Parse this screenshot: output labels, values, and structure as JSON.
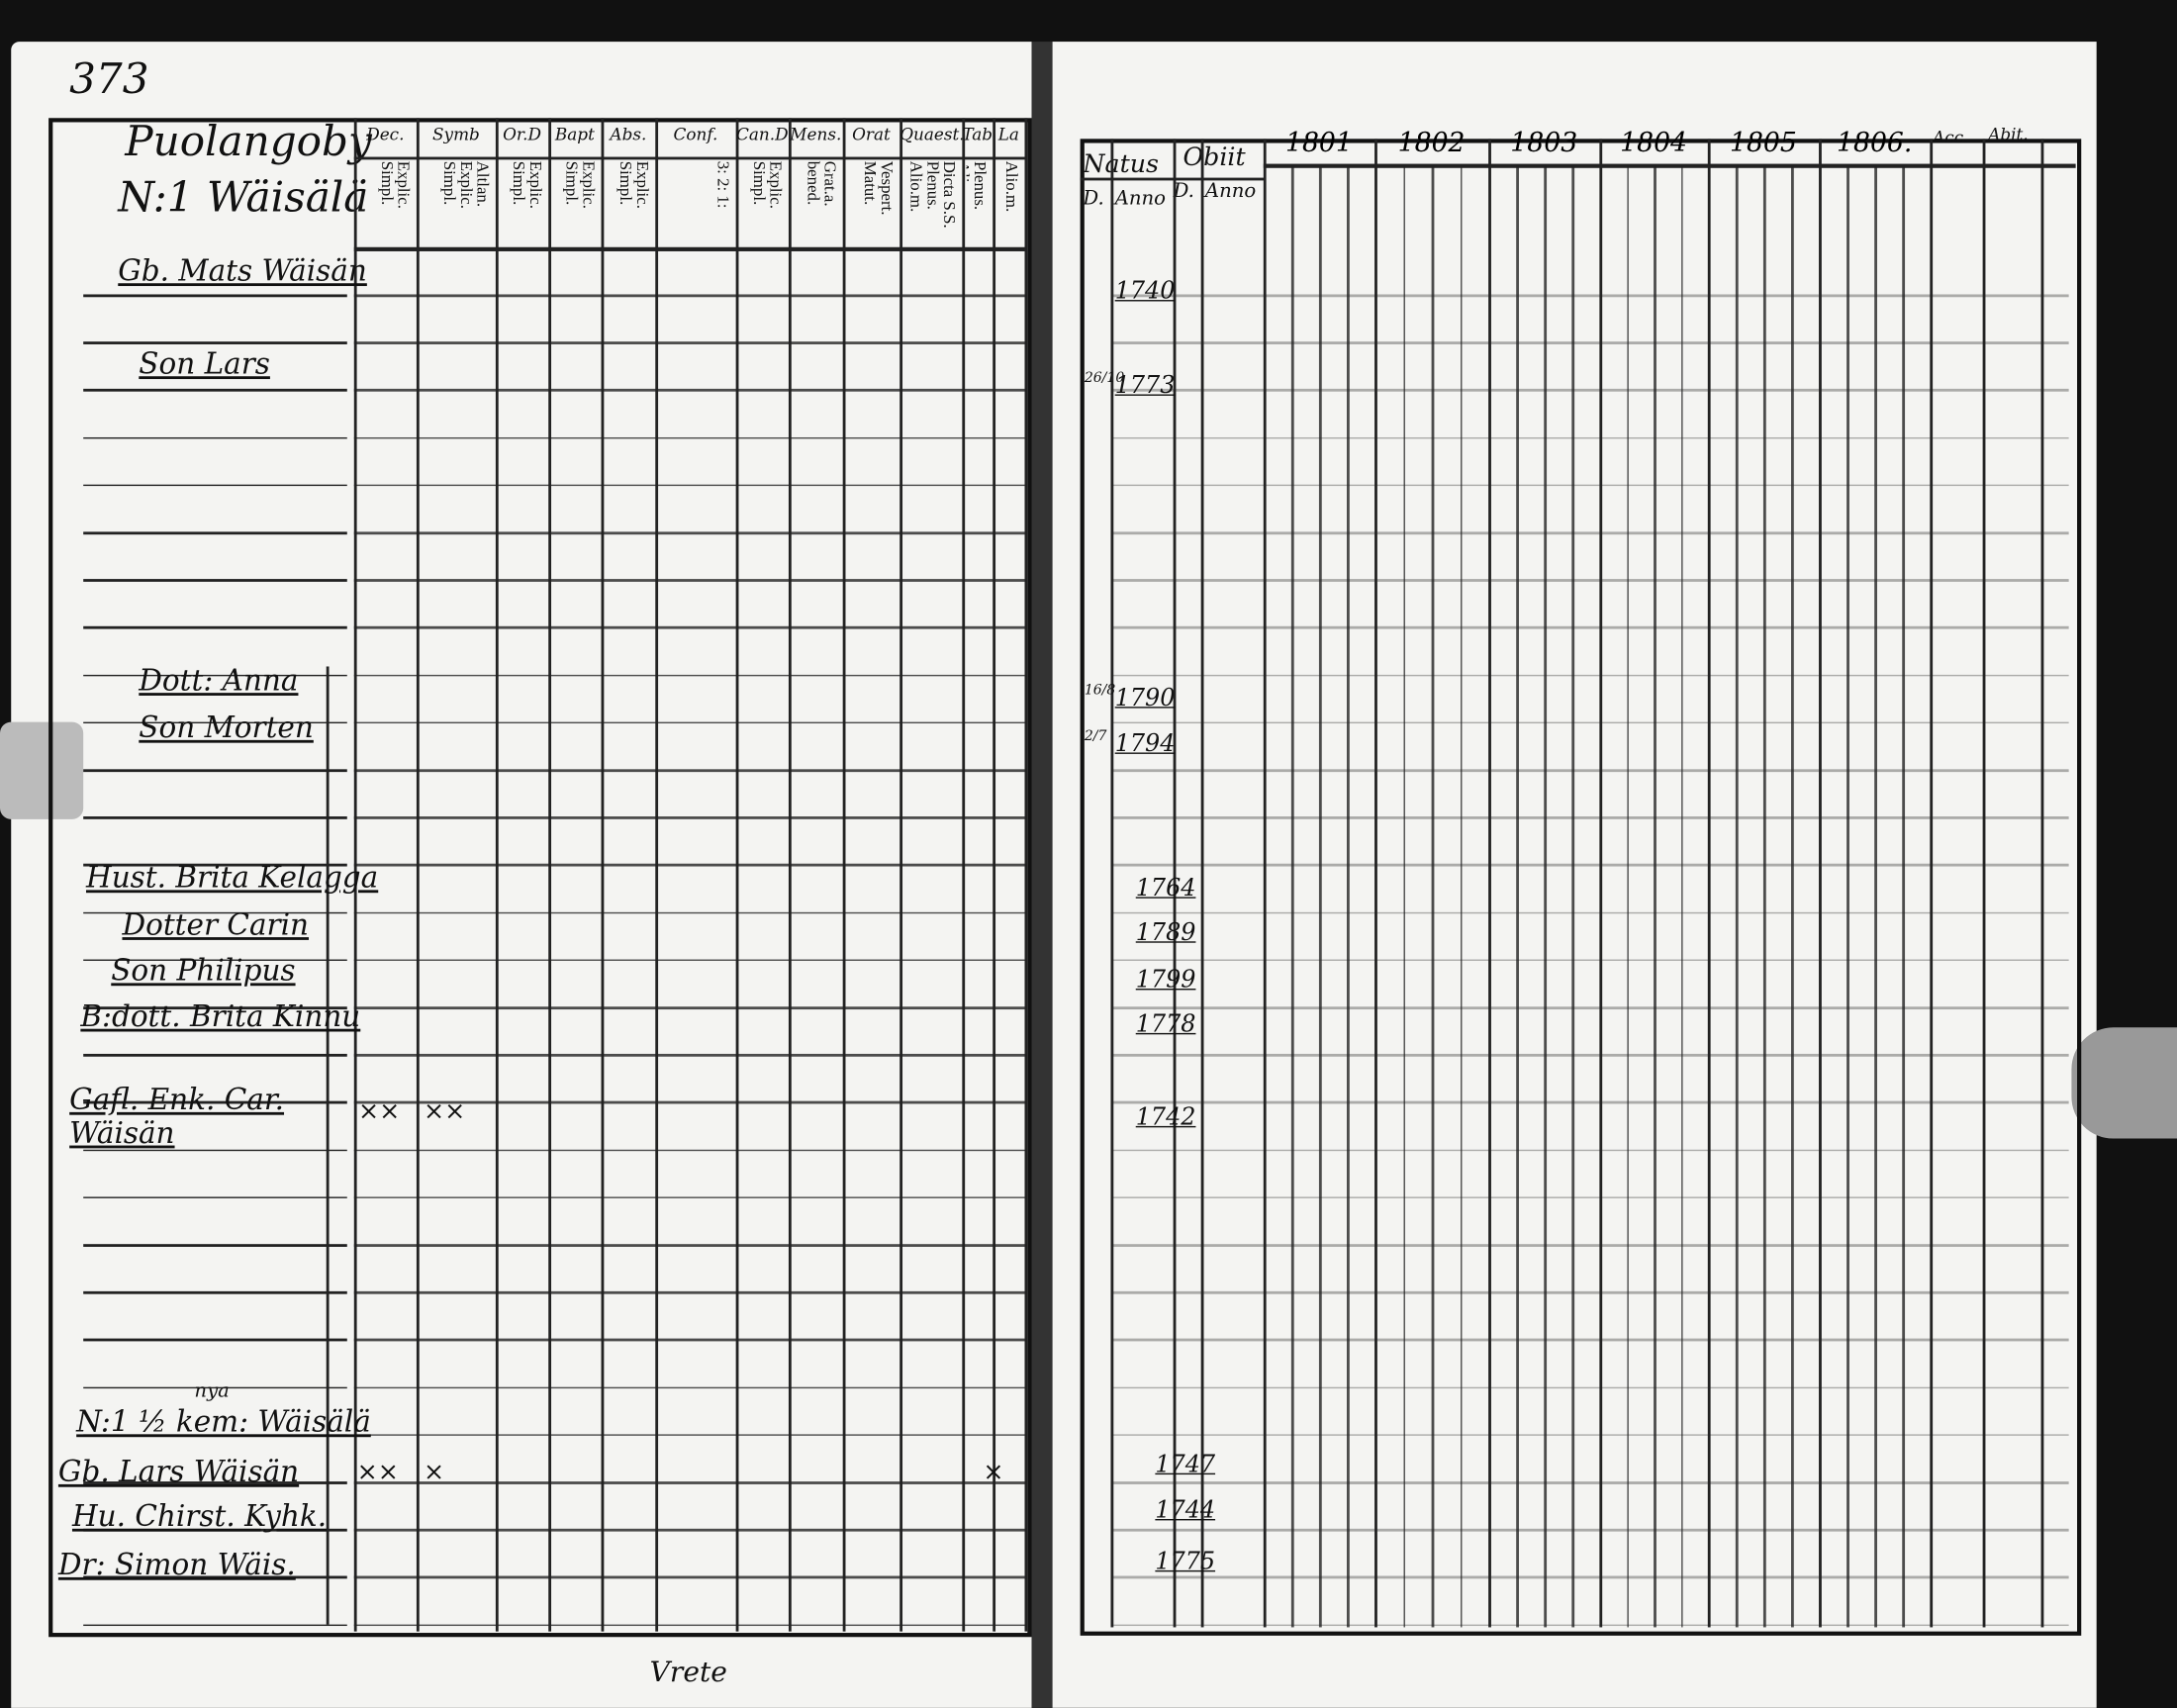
{
  "page_number": "373",
  "footer_note": "Vrete",
  "left": {
    "village_title": [
      "Puolangoby",
      "N:1 Wäisälä"
    ],
    "columns": [
      {
        "head": "Dec.",
        "sub": "Explic. Simpl."
      },
      {
        "head": "Symb",
        "sub": "Altlan. Explic. Simpl."
      },
      {
        "head": "Or.D",
        "sub": "Explic. Simpl."
      },
      {
        "head": "Bapt",
        "sub": "Explic. Simpl."
      },
      {
        "head": "Abs.",
        "sub": "Explic. Simpl."
      },
      {
        "head": "Conf.",
        "sub": "3: 2: 1:"
      },
      {
        "head": "Can.D",
        "sub": "Explic. Simpl."
      },
      {
        "head": "Mens.",
        "sub": "Grat.a. bened."
      },
      {
        "head": "Orat",
        "sub": "Vespert. Matut."
      },
      {
        "head": "Quaest.",
        "sub": "Dicta S.S. Plenus. Alio.m."
      },
      {
        "head": "Tabe",
        "sub": "Plenus. Alio.m."
      },
      {
        "head": "La",
        "sub": "Alio.m."
      }
    ],
    "persons": [
      {
        "name": "Gb. Mats Wäisän",
        "marks": ""
      },
      {
        "name": "Son Lars",
        "marks": ""
      },
      {
        "name": "Dott: Anna",
        "marks": ""
      },
      {
        "name": "Son Morten",
        "marks": ""
      },
      {
        "name": "Hust. Brita Kelagga",
        "marks": ""
      },
      {
        "name": "Dotter Carin",
        "marks": ""
      },
      {
        "name": "Son Philipus",
        "marks": ""
      },
      {
        "name": "B:dott. Brita Kinnu",
        "marks": ""
      },
      {
        "name": "Gafl. Enk. Car. Wäisän",
        "marks": "×× ×× "
      },
      {
        "name": "N:1 ½ kem: Wäisälä",
        "marks": "",
        "note": "nya"
      },
      {
        "name": "Gb. Lars Wäisän",
        "marks": "×× ×× ×"
      },
      {
        "name": "Hu. Chirst. Kyhk.",
        "marks": ""
      },
      {
        "name": "Dr: Simon Wäis.",
        "marks": ""
      }
    ],
    "marks": {
      "dec_1": "××",
      "symb_1": "××",
      "dec_2": "××",
      "symb_2": "×",
      "tabe_2": "×"
    }
  },
  "right": {
    "headers": {
      "natus": "Natus",
      "obiit": "Obiit",
      "d": "D.",
      "anno": "Anno",
      "acc": "Acc.",
      "abit": "Abit."
    },
    "years": [
      "1801",
      "1802",
      "1803",
      "1804",
      "1805",
      "1806."
    ],
    "births": [
      {
        "day": "",
        "year": "1740"
      },
      {
        "day": "26/10",
        "year": "1773"
      },
      {
        "day": "16/8",
        "year": "1790"
      },
      {
        "day": "2/7",
        "year": "1794"
      },
      {
        "day": "",
        "year": "1764"
      },
      {
        "day": "",
        "year": "1789"
      },
      {
        "day": "",
        "year": "1799"
      },
      {
        "day": "",
        "year": "1778"
      },
      {
        "day": "",
        "year": "1742"
      },
      {
        "day": "",
        "year": "1747"
      },
      {
        "day": "",
        "year": "1744"
      },
      {
        "day": "",
        "year": "1775"
      }
    ]
  }
}
